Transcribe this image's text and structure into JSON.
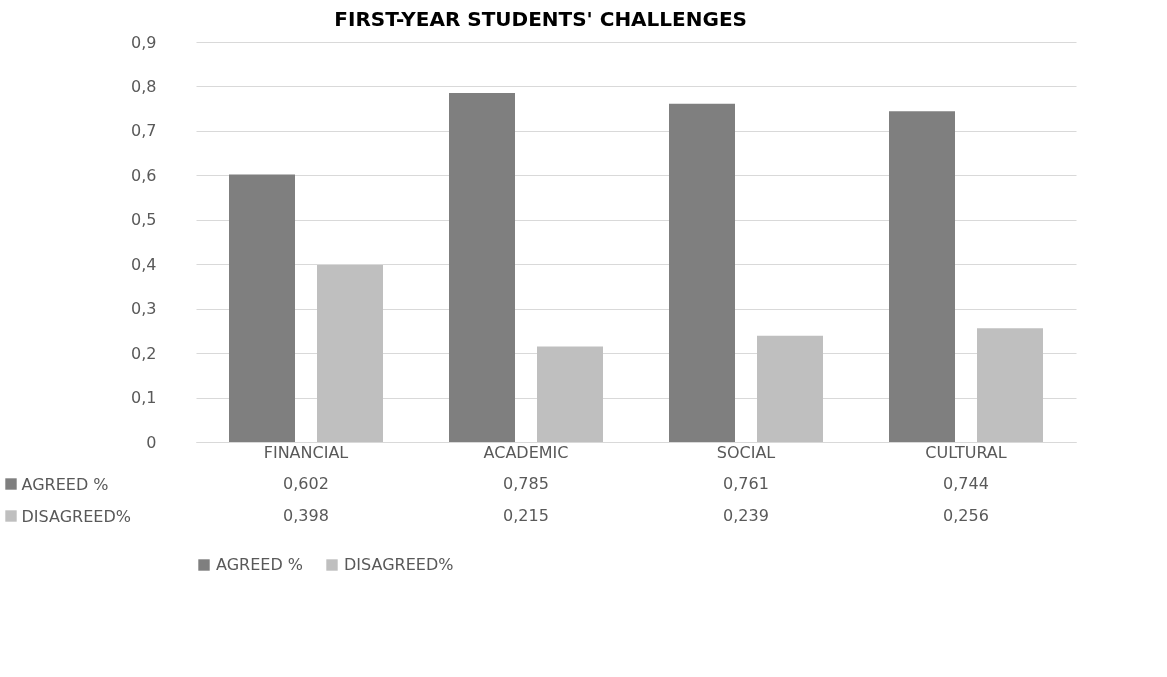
{
  "chart_data": {
    "type": "bar",
    "title": "FIRST-YEAR STUDENTS' CHALLENGES",
    "categories": [
      "FINANCIAL",
      "ACADEMIC",
      "SOCIAL",
      "CULTURAL"
    ],
    "series": [
      {
        "name": "AGREED %",
        "color": "#7f7f7f",
        "values": [
          0.602,
          0.785,
          0.761,
          0.744
        ],
        "value_labels": [
          "0,602",
          "0,785",
          "0,761",
          "0,744"
        ]
      },
      {
        "name": "DISAGREED%",
        "color": "#bfbfbf",
        "values": [
          0.398,
          0.215,
          0.239,
          0.256
        ],
        "value_labels": [
          "0,398",
          "0,215",
          "0,239",
          "0,256"
        ]
      }
    ],
    "ylim": [
      0,
      0.9
    ],
    "yticks": [
      {
        "value": 0,
        "label": "0"
      },
      {
        "value": 0.1,
        "label": "0,1"
      },
      {
        "value": 0.2,
        "label": "0,2"
      },
      {
        "value": 0.3,
        "label": "0,3"
      },
      {
        "value": 0.4,
        "label": "0,4"
      },
      {
        "value": 0.5,
        "label": "0,5"
      },
      {
        "value": 0.6,
        "label": "0,6"
      },
      {
        "value": 0.7,
        "label": "0,7"
      },
      {
        "value": 0.8,
        "label": "0,8"
      },
      {
        "value": 0.9,
        "label": "0,9"
      }
    ],
    "grid": "y",
    "legend": "bottom"
  }
}
